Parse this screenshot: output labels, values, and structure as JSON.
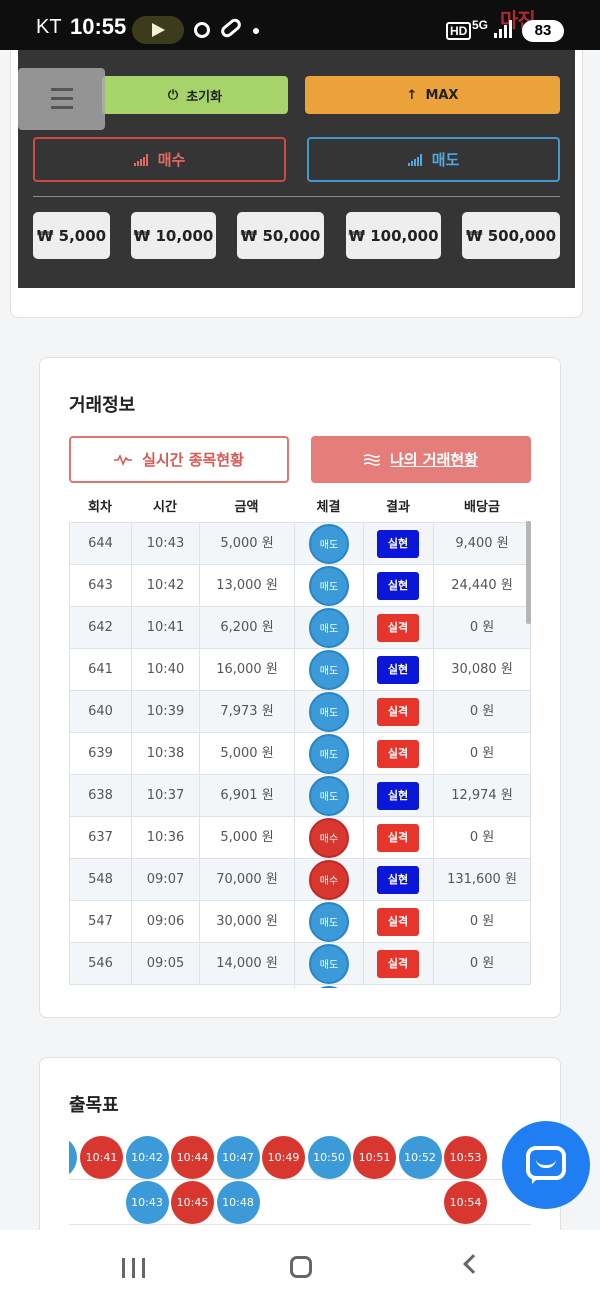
{
  "status_bar": {
    "carrier": "KT",
    "time": "10:55",
    "hd": "HD",
    "network": "5G",
    "battery": "83",
    "watermark": "마진"
  },
  "controls": {
    "reset_label": "초기화",
    "max_label": "MAX",
    "buy_label": "매수",
    "sell_label": "매도",
    "amounts": [
      "₩ 5,000",
      "₩ 10,000",
      "₩ 50,000",
      "₩ 100,000",
      "₩ 500,000"
    ]
  },
  "trade_info": {
    "title": "거래정보",
    "tabs": {
      "live": "실시간 종목현황",
      "mine": "나의 거래현황"
    },
    "columns": [
      "회차",
      "시간",
      "금액",
      "체결",
      "결과",
      "배당금"
    ],
    "rows": [
      {
        "round": "644",
        "time": "10:43",
        "amount": "5,000 원",
        "side": "매도",
        "result": "실현",
        "payout": "9,400 원"
      },
      {
        "round": "643",
        "time": "10:42",
        "amount": "13,000 원",
        "side": "매도",
        "result": "실현",
        "payout": "24,440 원"
      },
      {
        "round": "642",
        "time": "10:41",
        "amount": "6,200 원",
        "side": "매도",
        "result": "실격",
        "payout": "0 원"
      },
      {
        "round": "641",
        "time": "10:40",
        "amount": "16,000 원",
        "side": "매도",
        "result": "실현",
        "payout": "30,080 원"
      },
      {
        "round": "640",
        "time": "10:39",
        "amount": "7,973 원",
        "side": "매도",
        "result": "실격",
        "payout": "0 원"
      },
      {
        "round": "639",
        "time": "10:38",
        "amount": "5,000 원",
        "side": "매도",
        "result": "실격",
        "payout": "0 원"
      },
      {
        "round": "638",
        "time": "10:37",
        "amount": "6,901 원",
        "side": "매도",
        "result": "실현",
        "payout": "12,974 원"
      },
      {
        "round": "637",
        "time": "10:36",
        "amount": "5,000 원",
        "side": "매수",
        "result": "실격",
        "payout": "0 원"
      },
      {
        "round": "548",
        "time": "09:07",
        "amount": "70,000 원",
        "side": "매수",
        "result": "실현",
        "payout": "131,600 원"
      },
      {
        "round": "547",
        "time": "09:06",
        "amount": "30,000 원",
        "side": "매도",
        "result": "실격",
        "payout": "0 원"
      },
      {
        "round": "546",
        "time": "09:05",
        "amount": "14,000 원",
        "side": "매도",
        "result": "실격",
        "payout": "0 원"
      }
    ]
  },
  "result_board": {
    "title": "출목표",
    "columns": [
      [
        "10:41"
      ],
      [
        "10:42",
        "10:43"
      ],
      [
        "10:44",
        "10:45"
      ],
      [
        "10:47",
        "10:48"
      ],
      [
        "10:49"
      ],
      [
        "10:50"
      ],
      [
        "10:51"
      ],
      [
        "10:52"
      ],
      [
        "10:53",
        "10:54"
      ]
    ],
    "colors": {
      "10:41": "red",
      "10:42": "blue",
      "10:43": "blue",
      "10:44": "red",
      "10:45": "red",
      "10:47": "blue",
      "10:48": "blue",
      "10:49": "red",
      "10:50": "blue",
      "10:51": "red",
      "10:52": "blue",
      "10:53": "red",
      "10:54": "red"
    }
  },
  "colors": {
    "sell_blue": "#3c9ad9",
    "buy_red": "#d7372f",
    "realized_blue": "#0b17d8",
    "failed_red": "#e8352b",
    "reset_green": "#a6d36a",
    "max_orange": "#eca23b",
    "chat_blue": "#1f7ff2"
  },
  "icons": {
    "reset": "power-icon",
    "max": "arrow-up-icon",
    "buy": "signal-bars-icon",
    "sell": "signal-bars-icon",
    "live": "pulse-icon",
    "mine": "wave-lines-icon",
    "chat": "chat-icon",
    "menu": "hamburger-icon"
  }
}
